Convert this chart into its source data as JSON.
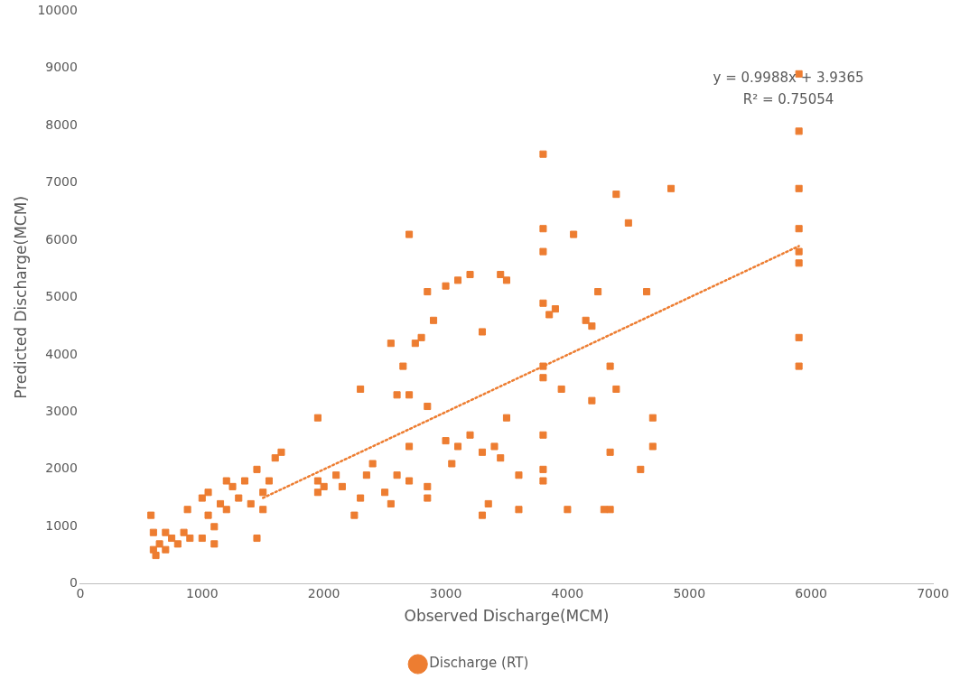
{
  "chart_data": {
    "type": "scatter",
    "xlabel": "Observed Discharge(MCM)",
    "ylabel": "Predicted Discharge(MCM)",
    "annotations": [
      "y = 0.9988x + 3.9365",
      "R² = 0.75054"
    ],
    "xlim": [
      0,
      7000
    ],
    "xticks": [
      0,
      1000,
      2000,
      3000,
      4000,
      5000,
      6000,
      7000
    ],
    "ylim": [
      0,
      10000
    ],
    "yticks": [
      0,
      1000,
      2000,
      3000,
      4000,
      5000,
      6000,
      7000,
      8000,
      9000,
      10000
    ],
    "grid": false,
    "legend": "bottom",
    "marker": "square",
    "series": [
      {
        "name": "Discharge (RT)",
        "color": "#ed7d31",
        "x": [
          580,
          600,
          620,
          650,
          700,
          750,
          800,
          850,
          880,
          900,
          600,
          700,
          1000,
          1050,
          1100,
          1150,
          1200,
          1250,
          1300,
          1350,
          1400,
          1450,
          1500,
          1550,
          1600,
          1650,
          1450,
          1050,
          1100,
          1200,
          1500,
          1000,
          1950,
          1950,
          1950,
          2000,
          2100,
          2150,
          2250,
          2300,
          2350,
          2400,
          2500,
          2550,
          2600,
          2700,
          2300,
          2550,
          2650,
          2600,
          2700,
          2700,
          2700,
          2750,
          2800,
          2850,
          2850,
          2850,
          2900,
          2850,
          3000,
          3100,
          3200,
          3450,
          3500,
          3300,
          3000,
          3100,
          3200,
          3300,
          3400,
          3500,
          3050,
          3300,
          3350,
          3450,
          3600,
          3600,
          3800,
          3800,
          3800,
          3800,
          3800,
          3800,
          3800,
          3800,
          3800,
          3850,
          3900,
          3950,
          4000,
          4050,
          4150,
          4200,
          4200,
          4250,
          4300,
          4350,
          4350,
          4400,
          4400,
          4500,
          4600,
          4650,
          4700,
          4700,
          4850,
          4350,
          5900,
          5900,
          5900,
          5900,
          5900,
          5900,
          5900,
          5900
        ],
        "values": [
          1200,
          600,
          500,
          700,
          600,
          800,
          700,
          900,
          1300,
          800,
          900,
          900,
          800,
          1200,
          1000,
          1400,
          1300,
          1700,
          1500,
          1800,
          1400,
          2000,
          1600,
          1800,
          2200,
          2300,
          800,
          1600,
          700,
          1800,
          1300,
          1500,
          2900,
          1800,
          1600,
          1700,
          1900,
          1700,
          1200,
          1500,
          1900,
          2100,
          1600,
          1400,
          1900,
          1800,
          3400,
          4200,
          3800,
          3300,
          3300,
          6100,
          2400,
          4200,
          4300,
          3100,
          1700,
          1500,
          4600,
          5100,
          5200,
          5300,
          5400,
          5400,
          5300,
          4400,
          2500,
          2400,
          2600,
          2300,
          2400,
          2900,
          2100,
          1200,
          1400,
          2200,
          1900,
          1300,
          7500,
          6200,
          5800,
          4900,
          3800,
          3600,
          2600,
          2000,
          1800,
          4700,
          4800,
          3400,
          1300,
          6100,
          4600,
          4500,
          3200,
          5100,
          1300,
          3800,
          2300,
          6800,
          3400,
          6300,
          2000,
          5100,
          2900,
          2400,
          6900,
          1300,
          8900,
          7900,
          6900,
          6200,
          5800,
          5600,
          4300,
          3800
        ]
      },
      {
        "type": "line",
        "color": "#ed7d31",
        "line_style": "dotted",
        "marker": "none",
        "x": [
          1500,
          5900
        ],
        "values": [
          1502,
          5897
        ]
      }
    ]
  }
}
